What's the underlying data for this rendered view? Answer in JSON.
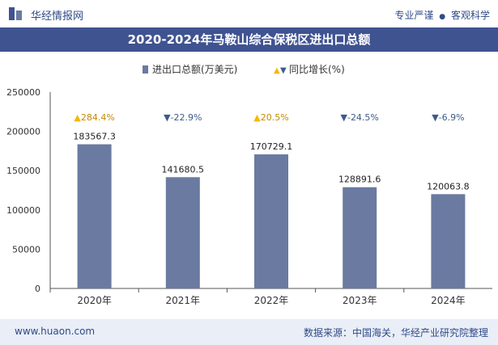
{
  "header": {
    "brand": "华经情报网",
    "tagline_left": "专业严谨",
    "tagline_dot": "●",
    "tagline_right": "客观科学"
  },
  "title": "2020-2024年马鞍山综合保税区进出口总额",
  "legend": {
    "bar_label": "进出口总额(万美元)",
    "line_label": "同比增长(%)"
  },
  "footer": {
    "website": "www.huaon.com",
    "source": "数据来源：中国海关，华经产业研究院整理"
  },
  "colors": {
    "bar": "#6b7aa1",
    "up": "#f5b800",
    "down": "#3d5a8a",
    "title_bg": "#3f5391"
  },
  "chart_data": {
    "type": "bar",
    "categories": [
      "2020年",
      "2021年",
      "2022年",
      "2023年",
      "2024年"
    ],
    "series": [
      {
        "name": "进出口总额(万美元)",
        "values": [
          183567.3,
          141680.5,
          170729.1,
          128891.6,
          120063.8
        ]
      },
      {
        "name": "同比增长(%)",
        "values": [
          284.4,
          -22.9,
          20.5,
          -24.5,
          -6.9
        ]
      }
    ],
    "value_labels": [
      "183567.3",
      "141680.5",
      "170729.1",
      "128891.6",
      "120063.8"
    ],
    "growth_labels": [
      "284.4%",
      "-22.9%",
      "20.5%",
      "-24.5%",
      "-6.9%"
    ],
    "yticks": [
      "0",
      "50000",
      "100000",
      "150000",
      "200000",
      "250000"
    ],
    "ylim": [
      0,
      250000
    ],
    "grid": false,
    "legend_position": "top-center"
  }
}
